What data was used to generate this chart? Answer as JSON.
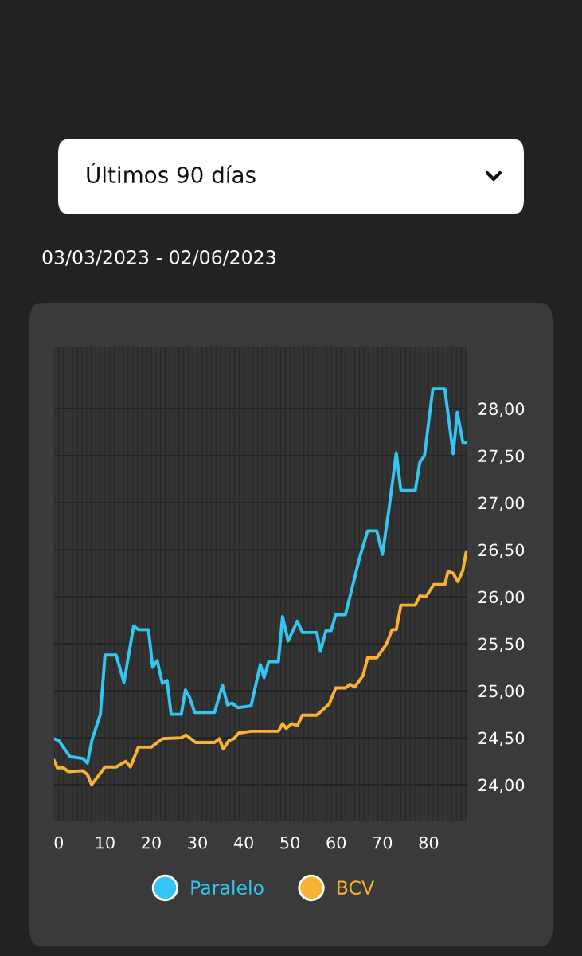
{
  "chart_data": {
    "type": "line",
    "title": "Últimos 90 días",
    "subtitle": "03/03/2023 - 02/06/2023",
    "xlim": [
      -1,
      88.2
    ],
    "xticks": [
      0,
      10,
      20,
      30,
      40,
      50,
      60,
      70,
      80
    ],
    "ylim": [
      23.62,
      28.66
    ],
    "yticks": [
      {
        "value": 24,
        "label": "24,00"
      },
      {
        "value": 24.5,
        "label": "24,50"
      },
      {
        "value": 25,
        "label": "25,00"
      },
      {
        "value": 25.5,
        "label": "25,50"
      },
      {
        "value": 26,
        "label": "26,00"
      },
      {
        "value": 26.5,
        "label": "26,50"
      },
      {
        "value": 27,
        "label": "27,00"
      },
      {
        "value": 27.5,
        "label": "27,50"
      },
      {
        "value": 28,
        "label": "28,00"
      }
    ],
    "grid": true,
    "legend": "bottom",
    "marker": "none",
    "line_style": "solid",
    "series": [
      {
        "name": "Paralelo",
        "color": "#33c6f2",
        "x": [
          -1,
          0,
          2.4,
          5.2,
          6.2,
          7.2,
          9.0,
          10.0,
          12.4,
          14.1,
          16.2,
          17.2,
          19.4,
          20.3,
          21.3,
          22.4,
          23.4,
          24.3,
          26.5,
          27.4,
          28.2,
          29.4,
          33.7,
          35.4,
          36.5,
          37.5,
          38.7,
          41.6,
          43.6,
          44.4,
          45.4,
          47.5,
          48.4,
          49.6,
          51.6,
          52.7,
          55.8,
          56.6,
          57.8,
          58.9,
          59.9,
          62.0,
          65.1,
          66.8,
          68.8,
          70.0,
          71.3,
          73.0,
          74.0,
          77.1,
          78.1,
          79.1,
          80.9,
          83.5,
          85.3,
          86.2,
          87.4,
          88.1
        ],
        "values": [
          24.49,
          24.47,
          24.3,
          24.28,
          24.23,
          24.48,
          24.75,
          25.38,
          25.38,
          25.09,
          25.69,
          25.65,
          25.65,
          25.25,
          25.32,
          25.08,
          25.11,
          24.75,
          24.75,
          25.01,
          24.94,
          24.77,
          24.77,
          25.06,
          24.85,
          24.87,
          24.82,
          24.84,
          25.28,
          25.14,
          25.31,
          25.31,
          25.79,
          25.53,
          25.74,
          25.62,
          25.62,
          25.42,
          25.64,
          25.64,
          25.81,
          25.81,
          26.42,
          26.7,
          26.7,
          26.45,
          26.89,
          27.53,
          27.13,
          27.13,
          27.43,
          27.5,
          28.21,
          28.21,
          27.52,
          27.96,
          27.64,
          27.64
        ]
      },
      {
        "name": "BCV",
        "color": "#f9b233",
        "x": [
          -1,
          -0.3,
          1.0,
          2.1,
          5.2,
          6.2,
          7.1,
          10.0,
          12.4,
          14.5,
          15.5,
          17.2,
          20.0,
          22.4,
          26.5,
          27.5,
          29.6,
          33.7,
          34.7,
          35.6,
          36.8,
          37.9,
          38.9,
          41.6,
          47.5,
          48.4,
          49.2,
          50.4,
          51.6,
          52.7,
          55.8,
          58.5,
          59.9,
          62.0,
          63.0,
          64.0,
          65.8,
          66.8,
          68.8,
          70.9,
          72.1,
          73.0,
          74.0,
          77.1,
          78.1,
          79.4,
          81.1,
          83.5,
          84.2,
          85.3,
          86.3,
          87.4,
          88.1
        ],
        "values": [
          24.26,
          24.18,
          24.18,
          24.14,
          24.15,
          24.11,
          24.0,
          24.19,
          24.19,
          24.25,
          24.19,
          24.4,
          24.4,
          24.49,
          24.5,
          24.53,
          24.45,
          24.45,
          24.49,
          24.38,
          24.47,
          24.49,
          24.55,
          24.57,
          24.57,
          24.65,
          24.6,
          24.65,
          24.63,
          24.74,
          24.74,
          24.86,
          25.03,
          25.03,
          25.07,
          25.04,
          25.16,
          25.35,
          25.35,
          25.5,
          25.65,
          25.65,
          25.91,
          25.91,
          26.01,
          26.0,
          26.13,
          26.13,
          26.27,
          26.25,
          26.16,
          26.28,
          26.47
        ]
      }
    ]
  }
}
